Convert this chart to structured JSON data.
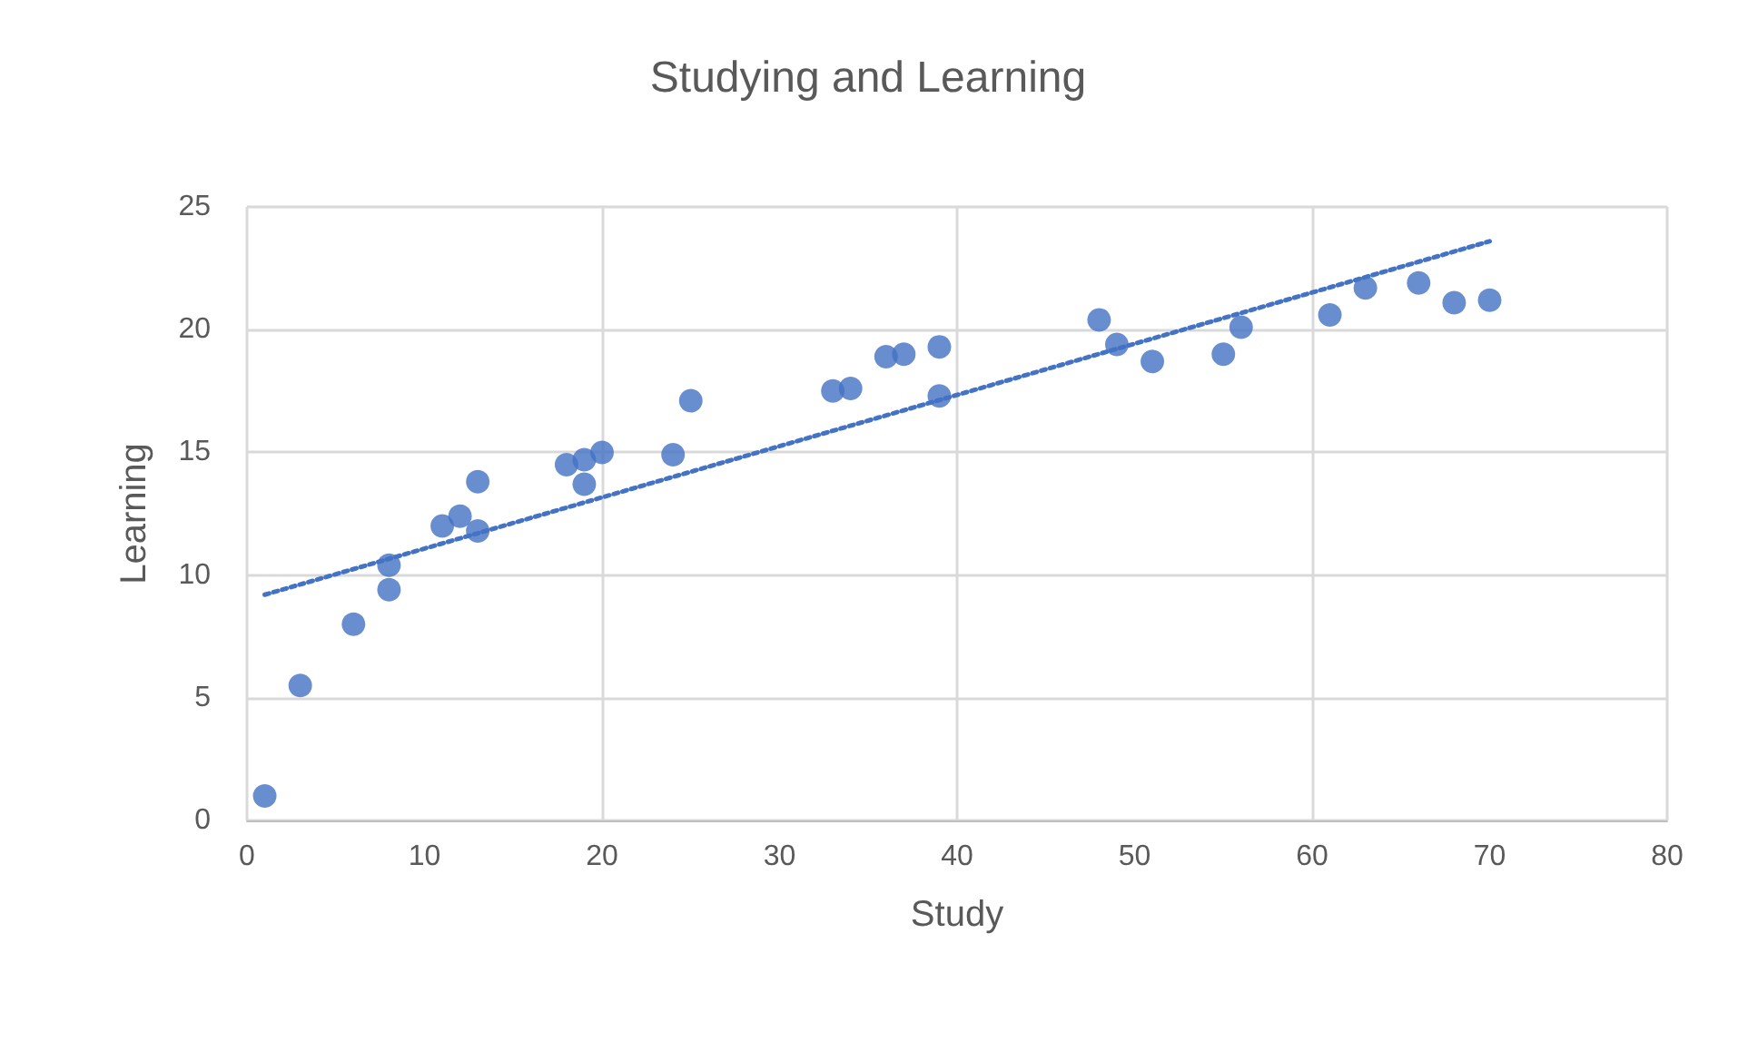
{
  "chart_data": {
    "type": "scatter",
    "title": "Studying and Learning",
    "xlabel": "Study",
    "ylabel": "Learning",
    "xlim": [
      0,
      80
    ],
    "xticks": [
      0,
      10,
      20,
      30,
      40,
      50,
      60,
      70,
      80
    ],
    "ylim": [
      0,
      25
    ],
    "yticks": [
      0,
      5,
      10,
      15,
      20,
      25
    ],
    "grid": true,
    "marker": "circle",
    "series": [
      {
        "color": "#4472c4",
        "x": [
          1,
          3,
          6,
          8,
          8,
          11,
          12,
          13,
          13,
          18,
          19,
          19,
          20,
          24,
          25,
          33,
          34,
          36,
          37,
          39,
          39,
          48,
          49,
          51,
          55,
          56,
          61,
          63,
          66,
          68,
          70
        ],
        "values": [
          1,
          5.5,
          8,
          10.4,
          9.4,
          12,
          12.4,
          13.8,
          11.8,
          14.5,
          14.7,
          13.7,
          15,
          14.9,
          17.1,
          17.5,
          17.6,
          18.9,
          19,
          19.3,
          17.3,
          20.4,
          19.4,
          18.7,
          19,
          20.1,
          20.6,
          21.7,
          21.9,
          21.1,
          21.2
        ]
      },
      {
        "type": "line",
        "color": "#4472c4",
        "marker": "none",
        "line_style": "dotted",
        "x": [
          1,
          70
        ],
        "values": [
          9.2,
          23.6
        ]
      }
    ]
  }
}
